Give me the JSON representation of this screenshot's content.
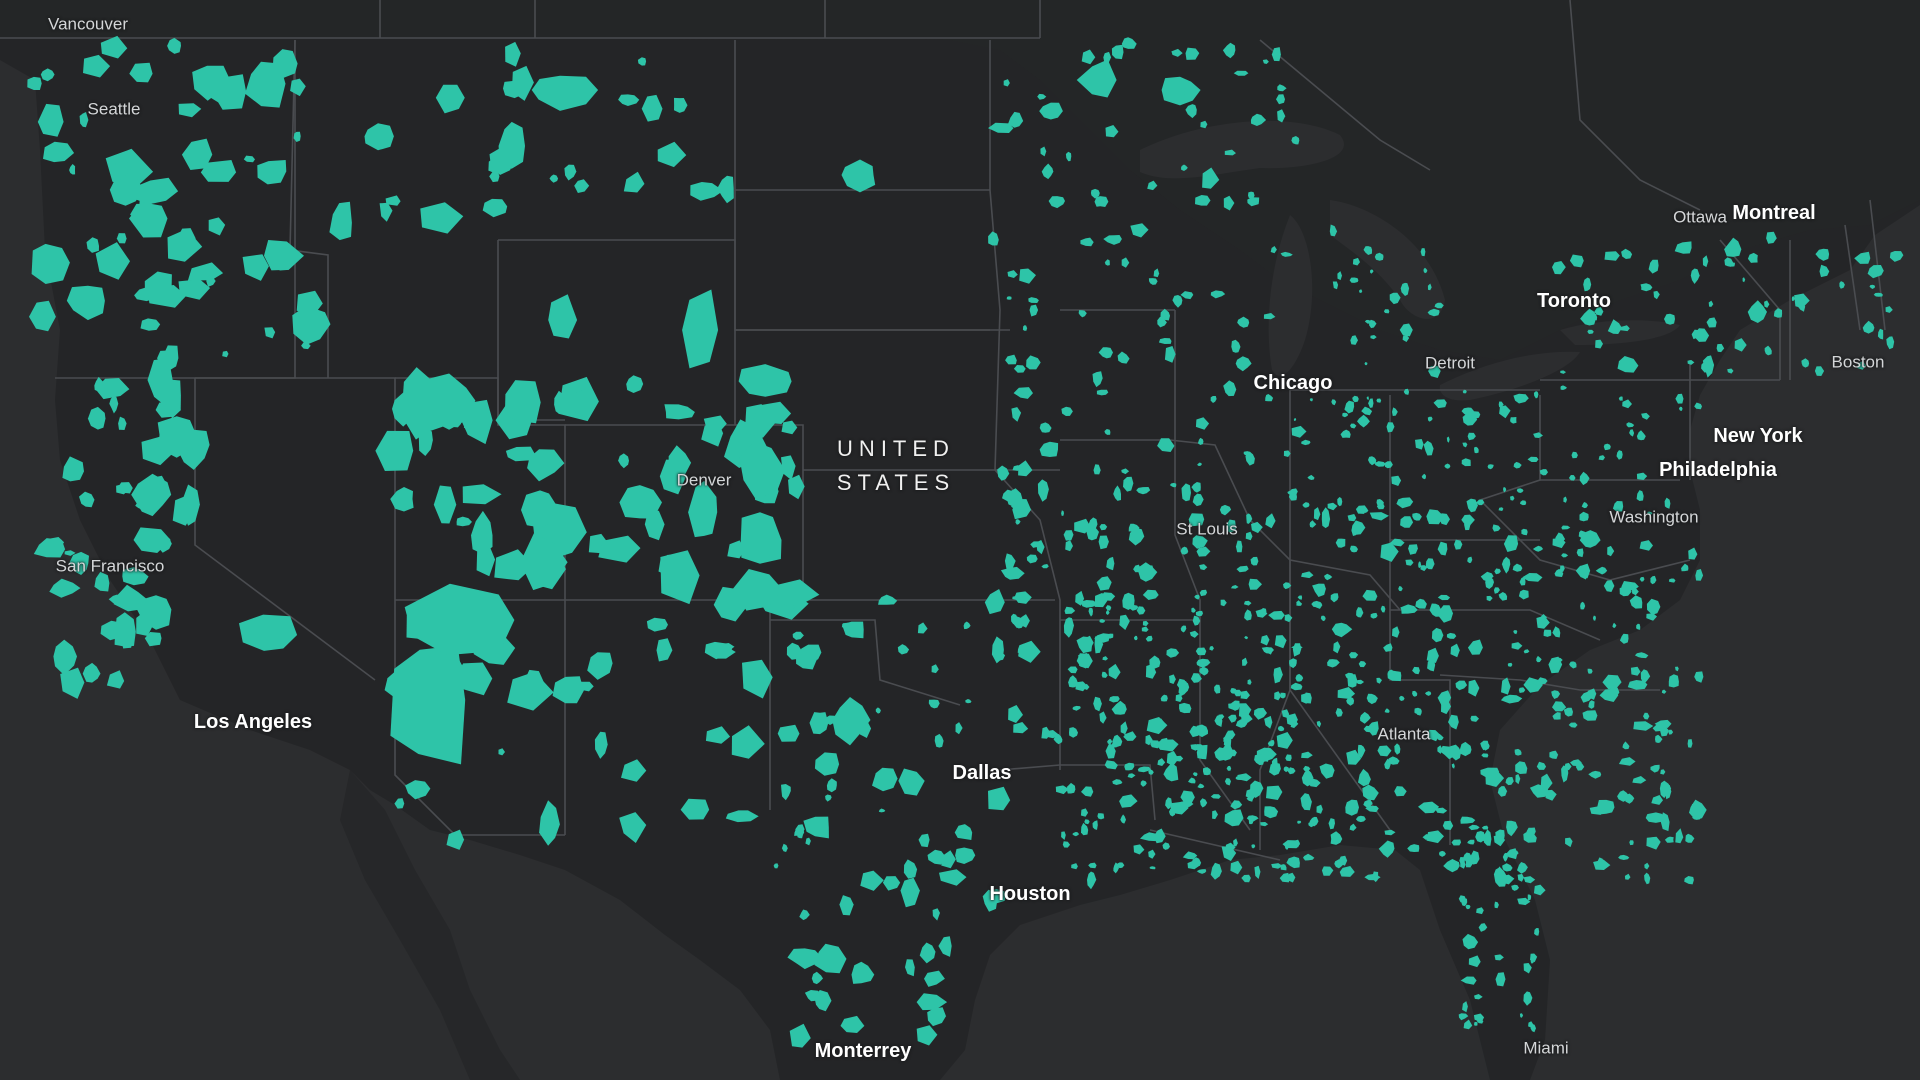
{
  "map": {
    "colors": {
      "water": "#2c2d2f",
      "land": "#242527",
      "border": "#4a4c50",
      "region_fill": "#2ec4a8"
    },
    "country_label": {
      "line1": "UNITED",
      "line2": "STATES"
    },
    "cities": [
      {
        "name": "Vancouver",
        "tier": "minor"
      },
      {
        "name": "Seattle",
        "tier": "minor"
      },
      {
        "name": "San Francisco",
        "tier": "minor"
      },
      {
        "name": "Los Angeles",
        "tier": "major"
      },
      {
        "name": "Denver",
        "tier": "minor"
      },
      {
        "name": "Dallas",
        "tier": "major"
      },
      {
        "name": "Houston",
        "tier": "major"
      },
      {
        "name": "Monterrey",
        "tier": "major"
      },
      {
        "name": "St Louis",
        "tier": "minor"
      },
      {
        "name": "Chicago",
        "tier": "major"
      },
      {
        "name": "Detroit",
        "tier": "minor"
      },
      {
        "name": "Toronto",
        "tier": "major"
      },
      {
        "name": "Ottawa",
        "tier": "minor"
      },
      {
        "name": "Montreal",
        "tier": "major"
      },
      {
        "name": "Boston",
        "tier": "minor"
      },
      {
        "name": "New York",
        "tier": "major"
      },
      {
        "name": "Philadelphia",
        "tier": "major"
      },
      {
        "name": "Washington",
        "tier": "minor"
      },
      {
        "name": "Atlanta",
        "tier": "minor"
      },
      {
        "name": "Miami",
        "tier": "minor"
      }
    ]
  }
}
